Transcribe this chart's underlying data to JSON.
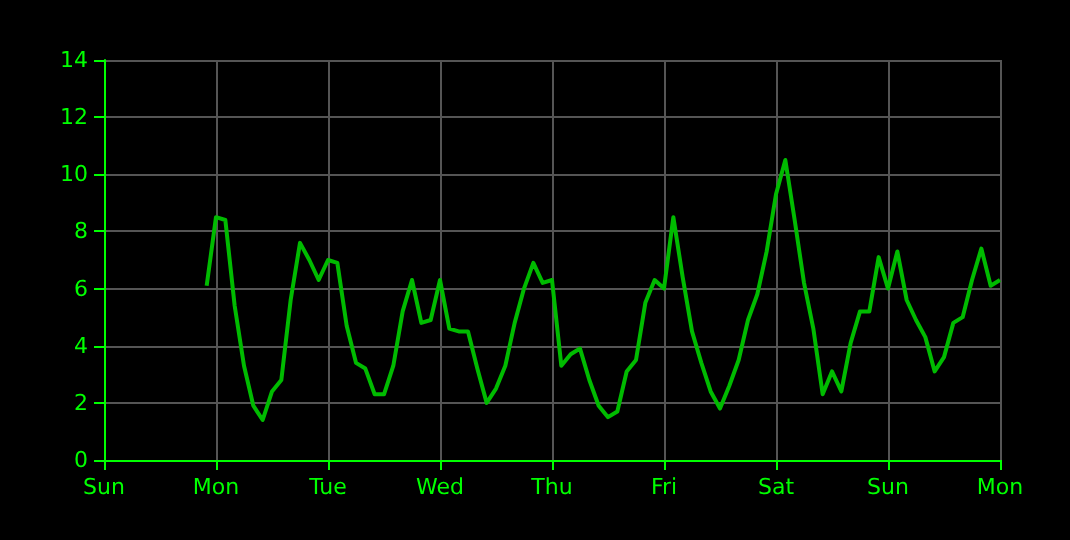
{
  "chart_data": {
    "type": "line",
    "grid": true,
    "marker": "none",
    "line_style": "solid",
    "categories": [
      "Sun",
      null,
      null,
      null,
      null,
      null,
      null,
      null,
      null,
      null,
      null,
      null,
      "Mon",
      null,
      null,
      null,
      null,
      null,
      null,
      null,
      null,
      null,
      null,
      null,
      "Tue",
      null,
      null,
      null,
      null,
      null,
      null,
      null,
      null,
      null,
      null,
      null,
      "Wed",
      null,
      null,
      null,
      null,
      null,
      null,
      null,
      null,
      null,
      null,
      null,
      "Thu",
      null,
      null,
      null,
      null,
      null,
      null,
      null,
      null,
      null,
      null,
      null,
      "Fri",
      null,
      null,
      null,
      null,
      null,
      null,
      null,
      null,
      null,
      null,
      null,
      "Sat",
      null,
      null,
      null,
      null,
      null,
      null,
      null,
      null,
      null,
      null,
      null,
      "Sun",
      null,
      null,
      null,
      null,
      null,
      null,
      null,
      null,
      null,
      null,
      null,
      "Mon"
    ],
    "ylim": [
      0,
      14
    ],
    "yticks": [
      0,
      2,
      4,
      6,
      8,
      10,
      12,
      14
    ],
    "series": [
      {
        "color": "#00bb00",
        "values": [
          null,
          null,
          null,
          null,
          null,
          null,
          null,
          null,
          null,
          null,
          null,
          6.1,
          8.5,
          8.4,
          5.4,
          3.3,
          1.9,
          1.4,
          2.4,
          2.8,
          5.6,
          7.6,
          7.0,
          6.3,
          7.0,
          6.9,
          4.7,
          3.4,
          3.2,
          2.3,
          2.3,
          3.3,
          5.2,
          6.3,
          4.8,
          4.9,
          6.3,
          4.6,
          4.5,
          4.5,
          3.2,
          2.0,
          2.5,
          3.3,
          4.8,
          6.0,
          6.9,
          6.2,
          6.3,
          3.3,
          3.7,
          3.9,
          2.8,
          1.9,
          1.5,
          1.7,
          3.1,
          3.5,
          5.5,
          6.3,
          6.0,
          8.5,
          6.4,
          4.5,
          3.4,
          2.4,
          1.8,
          2.6,
          3.5,
          4.9,
          5.8,
          7.3,
          9.3,
          10.5,
          8.4,
          6.2,
          4.6,
          2.3,
          3.1,
          2.4,
          4.1,
          5.2,
          5.2,
          7.1,
          6.0,
          7.3,
          5.6,
          4.9,
          4.3,
          3.1,
          3.6,
          4.8,
          5.0,
          6.3,
          7.4,
          6.1,
          6.3
        ]
      }
    ]
  }
}
